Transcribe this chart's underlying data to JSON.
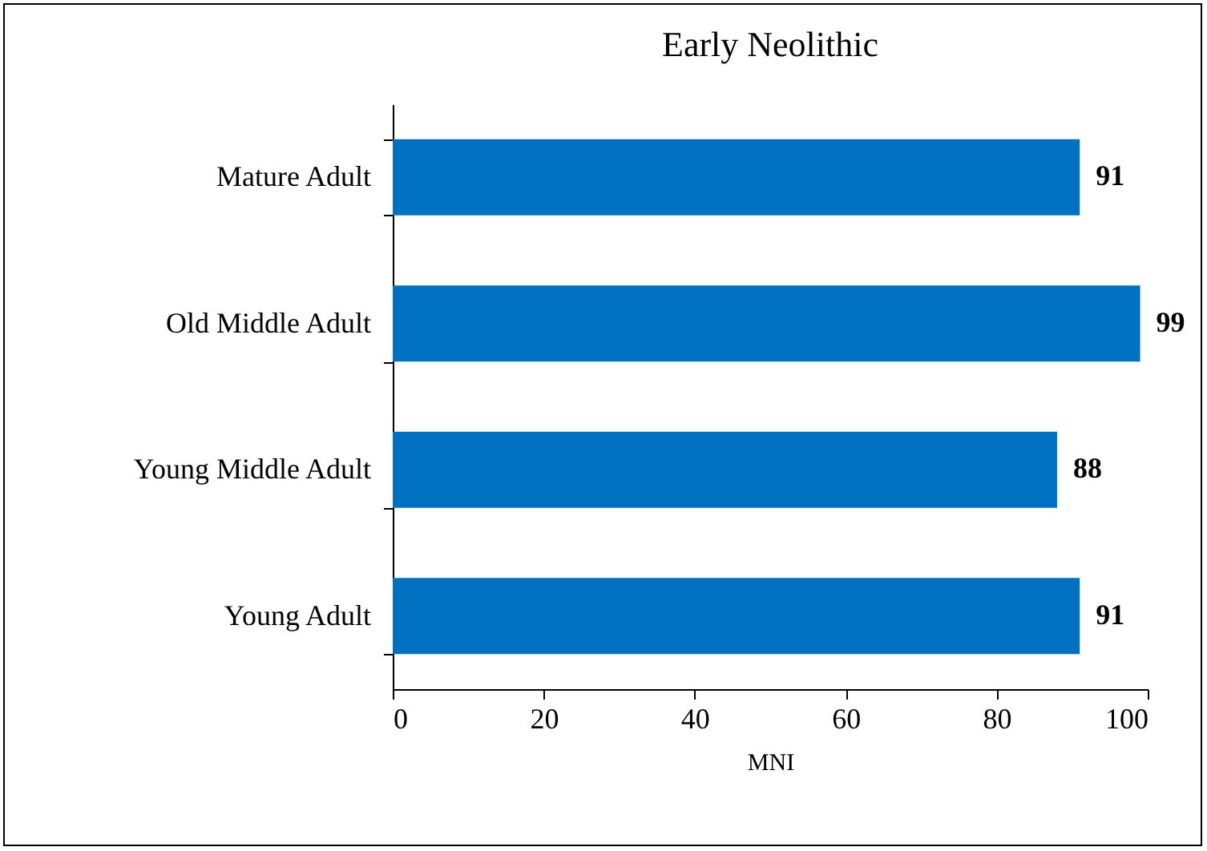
{
  "chart_data": {
    "type": "bar",
    "orientation": "horizontal",
    "title": "Early Neolithic",
    "xlabel": "MNI",
    "categories": [
      "Mature Adult",
      "Old Middle Adult",
      "Young Middle Adult",
      "Young Adult"
    ],
    "values": [
      91,
      99,
      88,
      91
    ],
    "color": "#0070c0",
    "xlim": [
      0,
      100
    ],
    "xticks": [
      0,
      20,
      40,
      60,
      80,
      100
    ],
    "data_labels": true
  }
}
